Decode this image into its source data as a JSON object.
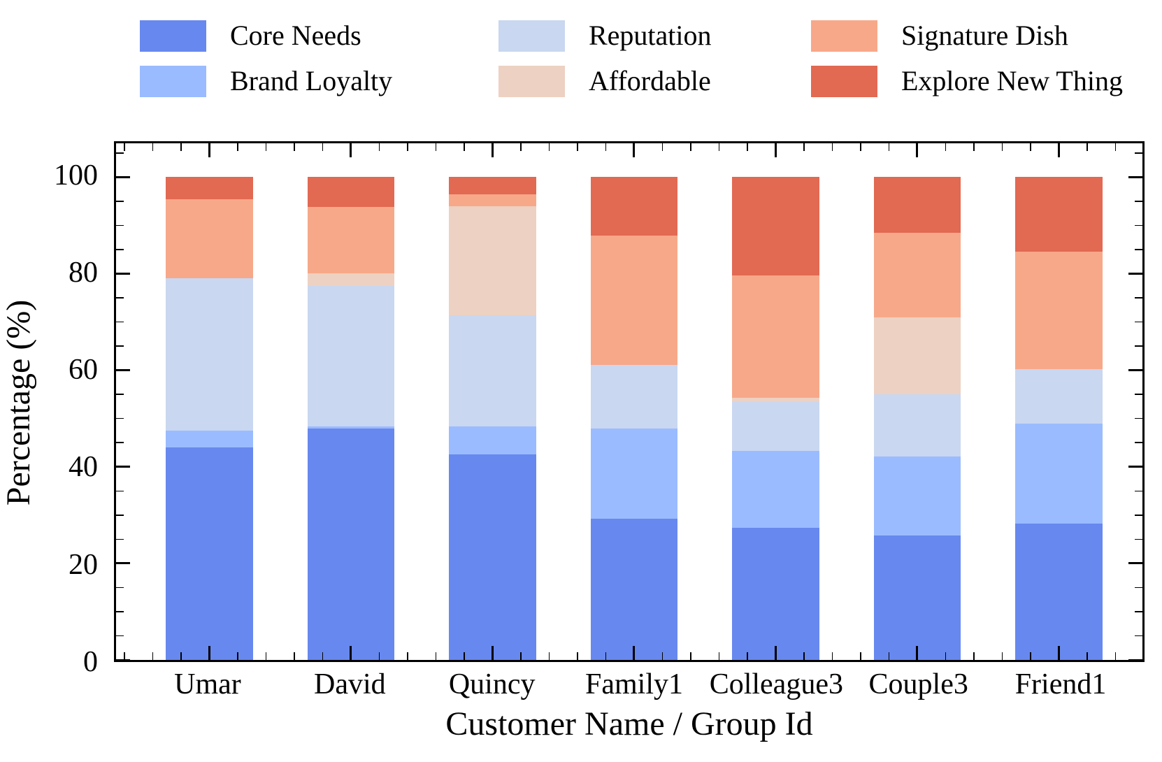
{
  "chart_data": {
    "type": "bar",
    "stacked": true,
    "orientation": "vertical",
    "xlabel": "Customer Name / Group Id",
    "ylabel": "Percentage (%)",
    "categories": [
      "Umar",
      "David",
      "Quincy",
      "Family1",
      "Colleague3",
      "Couple3",
      "Friend1"
    ],
    "series": [
      {
        "name": "Core Needs",
        "color": "#6788EE",
        "values": [
          44.0,
          48.0,
          42.6,
          29.2,
          27.4,
          25.8,
          28.3
        ]
      },
      {
        "name": "Brand Loyalty",
        "color": "#9ABBFF",
        "values": [
          3.5,
          0.3,
          5.8,
          18.7,
          15.9,
          16.3,
          20.6
        ]
      },
      {
        "name": "Reputation",
        "color": "#C9D7F0",
        "values": [
          31.6,
          29.1,
          23.0,
          13.2,
          10.2,
          12.9,
          11.4
        ]
      },
      {
        "name": "Affordable",
        "color": "#EDD1C2",
        "values": [
          0.0,
          2.7,
          22.6,
          0.0,
          0.8,
          16.0,
          0.0
        ]
      },
      {
        "name": "Signature Dish",
        "color": "#F7A889",
        "values": [
          16.3,
          13.7,
          2.5,
          26.8,
          25.4,
          17.4,
          24.2
        ]
      },
      {
        "name": "Explore New Thing",
        "color": "#E26952",
        "values": [
          4.6,
          6.2,
          3.5,
          12.1,
          20.3,
          11.6,
          15.5
        ]
      }
    ],
    "ylim": [
      0,
      107
    ],
    "yticks_major": [
      0,
      20,
      40,
      60,
      80,
      100
    ],
    "ytick_labels": [
      "0",
      "20",
      "40",
      "60",
      "80",
      "100"
    ],
    "y_minor_step": 5,
    "grid": false,
    "legend_position": "top",
    "legend_columns": 3,
    "tick_direction": "in",
    "axis_color": "#000000",
    "background_color": "#ffffff"
  }
}
